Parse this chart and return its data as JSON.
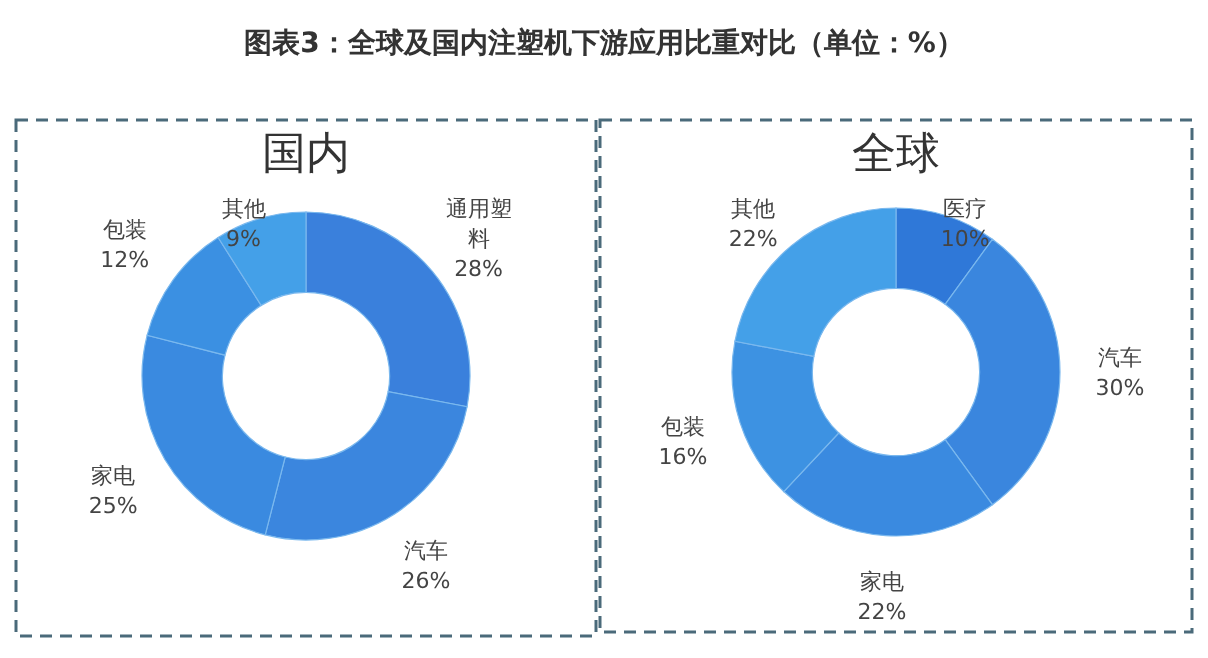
{
  "chart_data": [
    {
      "type": "donut",
      "title": "图表3：全球及国内注塑机下游应用比重对比（单位：%）",
      "subtitle": "国内",
      "categories": [
        "通用塑料",
        "汽车",
        "家电",
        "包装",
        "其他"
      ],
      "values": [
        28,
        26,
        25,
        12,
        9
      ],
      "colors": [
        "#3a80dc",
        "#3b86de",
        "#3a8ae0",
        "#3b90e2",
        "#44a0e8"
      ],
      "value_labels": [
        "28%",
        "26%",
        "25%",
        "12%",
        "9%"
      ],
      "legend": false
    },
    {
      "type": "donut",
      "title": "全球",
      "categories": [
        "医疗",
        "汽车",
        "家电",
        "包装",
        "其他"
      ],
      "values": [
        10,
        30,
        22,
        16,
        22
      ],
      "colors": [
        "#2f78d8",
        "#3a86de",
        "#3a8ae0",
        "#3d92e2",
        "#44a0e8"
      ],
      "value_labels": [
        "10%",
        "30%",
        "22%",
        "16%",
        "22%"
      ],
      "legend": false
    }
  ]
}
